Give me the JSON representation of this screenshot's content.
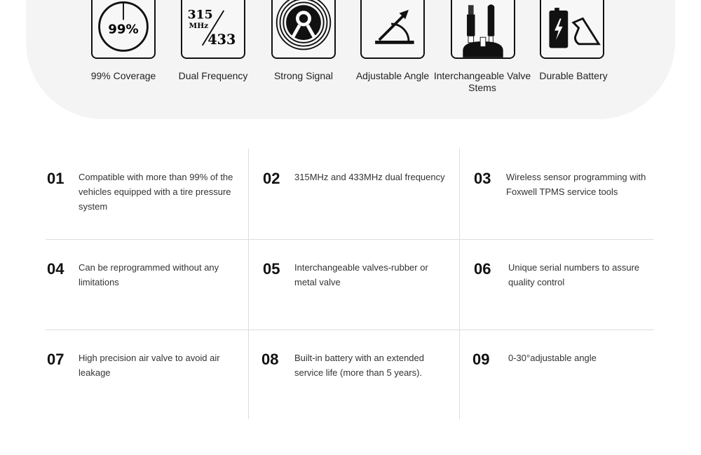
{
  "features": [
    {
      "label": "99% Coverage",
      "icon": "coverage-99-icon",
      "icon_text": "99%"
    },
    {
      "label": "Dual Frequency",
      "icon": "dual-frequency-icon",
      "icon_text": [
        "315",
        "MHz",
        "433"
      ]
    },
    {
      "label": "Strong Signal",
      "icon": "signal-icon"
    },
    {
      "label": "Adjustable Angle",
      "icon": "angle-icon"
    },
    {
      "label": "Interchangeable Valve Stems",
      "icon": "valve-stems-icon"
    },
    {
      "label": "Durable Battery",
      "icon": "battery-icon"
    }
  ],
  "items": [
    {
      "num": "01",
      "text": "Compatible with more than 99% of the vehicles equipped with a tire pressure system"
    },
    {
      "num": "02",
      "text": "315MHz and 433MHz dual frequency"
    },
    {
      "num": "03",
      "text": "Wireless sensor programming with Foxwell TPMS service tools"
    },
    {
      "num": "04",
      "text": "Can be reprogrammed without any limitations"
    },
    {
      "num": "05",
      "text": "Interchangeable valves-rubber or metal valve"
    },
    {
      "num": "06",
      "text": "Unique serial numbers to assure quality control"
    },
    {
      "num": "07",
      "text": "High precision air valve to avoid air leakage"
    },
    {
      "num": "08",
      "text": "Built-in battery with an extended service life (more than 5 years)."
    },
    {
      "num": "09",
      "text": "0-30°adjustable angle"
    }
  ]
}
